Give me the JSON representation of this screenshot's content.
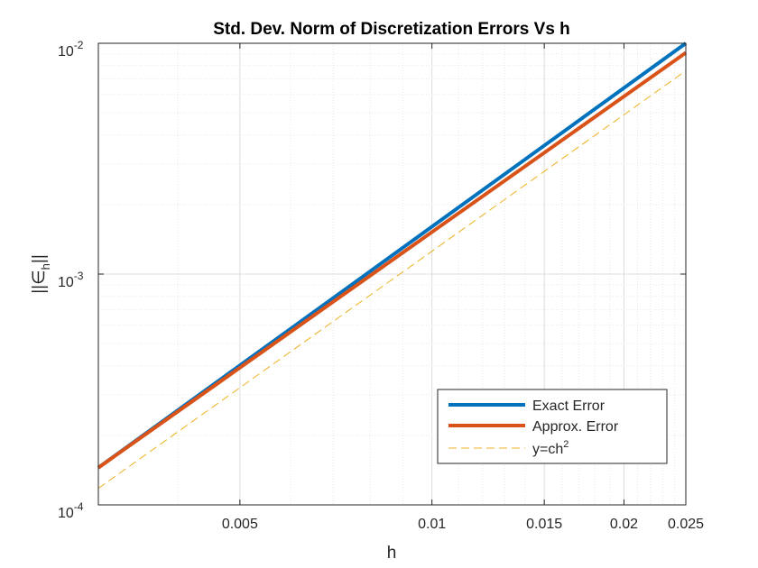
{
  "chart_data": {
    "type": "line",
    "title": "Std. Dev. Norm of Discretization Errors Vs h",
    "xlabel": "h",
    "ylabel": {
      "base": "||∈",
      "sub": "h",
      "tail": "||"
    },
    "xscale": "log",
    "yscale": "log",
    "xlim": [
      0.003,
      0.025
    ],
    "ylim": [
      0.0001,
      0.01
    ],
    "grid": true,
    "legend_position": "lower-right",
    "x_ticks": [
      "0.005",
      "0.01",
      "0.015",
      "0.02",
      "0.025"
    ],
    "x_tick_values": [
      0.005,
      0.01,
      0.015,
      0.02,
      0.025
    ],
    "y_ticks": [
      {
        "base": "10",
        "exp": "-4"
      },
      {
        "base": "10",
        "exp": "-3"
      },
      {
        "base": "10",
        "exp": "-2"
      }
    ],
    "y_tick_values": [
      0.0001,
      0.001,
      0.01
    ],
    "series": [
      {
        "name": "Exact Error",
        "color": "#0072bd",
        "style": "solid",
        "x": [
          0.003,
          0.025
        ],
        "y": [
          0.000145,
          0.01
        ]
      },
      {
        "name": "Approx. Error",
        "color": "#d95319",
        "style": "solid",
        "x": [
          0.003,
          0.025
        ],
        "y": [
          0.000145,
          0.0091
        ]
      },
      {
        "name": "y=ch",
        "name_sup": "2",
        "color": "#edb120",
        "style": "dashed",
        "x": [
          0.003,
          0.025
        ],
        "y": [
          0.000118,
          0.0076
        ]
      }
    ]
  }
}
